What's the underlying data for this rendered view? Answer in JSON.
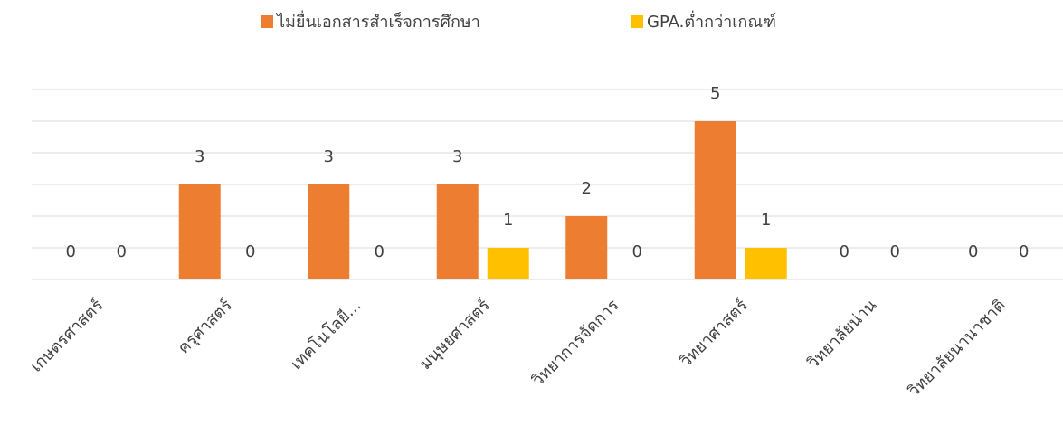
{
  "chart_data": {
    "type": "bar",
    "categories": [
      "เกษตรศาสตร์",
      "ครุศาสตร์",
      "เทคโนโลยี...",
      "มนุษยศาสตร์",
      "วิทยาการจัดการ",
      "วิทยาศาสตร์",
      "วิทยาลัยน่าน",
      "วิทยาลัยนานาชาติ"
    ],
    "series": [
      {
        "name": "ไม่ยื่นเอกสารสำเร็จการศึกษา",
        "color": "#ed7d31",
        "values": [
          0,
          3,
          3,
          3,
          2,
          5,
          0,
          0
        ]
      },
      {
        "name": "GPA.ต่ำกว่าเกณฑ์",
        "color": "#ffc000",
        "values": [
          0,
          0,
          0,
          1,
          0,
          1,
          0,
          0
        ]
      }
    ],
    "ylim": [
      0,
      6
    ],
    "yticks": [
      0,
      1,
      2,
      3,
      4,
      5,
      6
    ],
    "grid": true,
    "legend": "top"
  }
}
